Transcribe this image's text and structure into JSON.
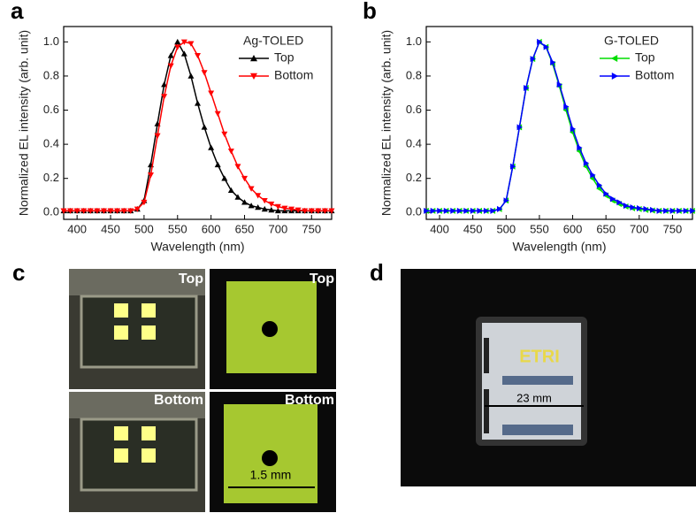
{
  "chart_data": [
    {
      "type": "line",
      "legend_title": "Ag-TOLED",
      "x_label": "Wavelength (nm)",
      "y_label": "Normalized EL intensity (arb. unit)",
      "x": [
        380,
        390,
        400,
        410,
        420,
        430,
        440,
        450,
        460,
        470,
        480,
        490,
        500,
        510,
        520,
        530,
        540,
        550,
        560,
        570,
        580,
        590,
        600,
        610,
        620,
        630,
        640,
        650,
        660,
        670,
        680,
        690,
        700,
        710,
        720,
        730,
        740,
        750,
        760,
        770,
        780
      ],
      "series": [
        {
          "name": "Top",
          "color": "#000000",
          "marker": "up",
          "values": [
            0.01,
            0.01,
            0.01,
            0.01,
            0.01,
            0.01,
            0.01,
            0.01,
            0.01,
            0.01,
            0.01,
            0.02,
            0.07,
            0.28,
            0.52,
            0.75,
            0.92,
            1.0,
            0.93,
            0.8,
            0.64,
            0.5,
            0.38,
            0.28,
            0.2,
            0.13,
            0.09,
            0.06,
            0.04,
            0.03,
            0.02,
            0.015,
            0.01,
            0.01,
            0.01,
            0.01,
            0.01,
            0.01,
            0.01,
            0.01,
            0.01
          ]
        },
        {
          "name": "Bottom",
          "color": "#ff0000",
          "marker": "down",
          "values": [
            0.01,
            0.01,
            0.01,
            0.01,
            0.01,
            0.01,
            0.01,
            0.01,
            0.01,
            0.01,
            0.01,
            0.02,
            0.06,
            0.22,
            0.45,
            0.68,
            0.86,
            0.97,
            1.0,
            0.99,
            0.92,
            0.82,
            0.7,
            0.58,
            0.46,
            0.36,
            0.27,
            0.2,
            0.14,
            0.1,
            0.07,
            0.05,
            0.035,
            0.025,
            0.02,
            0.015,
            0.01,
            0.01,
            0.01,
            0.01,
            0.01
          ]
        }
      ],
      "xlim": [
        380,
        780
      ],
      "xticks": [
        400,
        450,
        500,
        550,
        600,
        650,
        700,
        750
      ],
      "ylim": [
        -0.04,
        1.09
      ],
      "yticks": [
        {
          "value": 0,
          "label": "0.0"
        },
        0.2,
        0.4,
        0.6,
        0.8,
        {
          "value": 1,
          "label": "1.0"
        }
      ]
    },
    {
      "type": "line",
      "legend_title": "G-TOLED",
      "x_label": "Wavelength (nm)",
      "y_label": "Normalized EL intensity (arb. unit)",
      "x": [
        380,
        390,
        400,
        410,
        420,
        430,
        440,
        450,
        460,
        470,
        480,
        490,
        500,
        510,
        520,
        530,
        540,
        550,
        560,
        570,
        580,
        590,
        600,
        610,
        620,
        630,
        640,
        650,
        660,
        670,
        680,
        690,
        700,
        710,
        720,
        730,
        740,
        750,
        760,
        770,
        780
      ],
      "series": [
        {
          "name": "Top",
          "color": "#00dd00",
          "marker": "left",
          "values": [
            0.01,
            0.01,
            0.01,
            0.01,
            0.01,
            0.01,
            0.01,
            0.01,
            0.01,
            0.01,
            0.01,
            0.02,
            0.07,
            0.27,
            0.5,
            0.73,
            0.9,
            1.0,
            0.97,
            0.87,
            0.74,
            0.6,
            0.47,
            0.36,
            0.27,
            0.2,
            0.14,
            0.1,
            0.07,
            0.05,
            0.035,
            0.025,
            0.02,
            0.015,
            0.012,
            0.01,
            0.01,
            0.01,
            0.01,
            0.01,
            0.01
          ]
        },
        {
          "name": "Bottom",
          "color": "#0000ff",
          "marker": "right",
          "values": [
            0.01,
            0.01,
            0.01,
            0.01,
            0.01,
            0.01,
            0.01,
            0.01,
            0.01,
            0.01,
            0.01,
            0.02,
            0.07,
            0.27,
            0.5,
            0.73,
            0.9,
            1.0,
            0.97,
            0.88,
            0.75,
            0.62,
            0.49,
            0.38,
            0.29,
            0.22,
            0.16,
            0.11,
            0.08,
            0.06,
            0.04,
            0.03,
            0.025,
            0.02,
            0.015,
            0.01,
            0.01,
            0.01,
            0.01,
            0.01,
            0.01
          ]
        }
      ],
      "xlim": [
        380,
        780
      ],
      "xticks": [
        400,
        450,
        500,
        550,
        600,
        650,
        700,
        750
      ],
      "ylim": [
        -0.04,
        1.09
      ],
      "yticks": [
        {
          "value": 0,
          "label": "0.0"
        },
        0.2,
        0.4,
        0.6,
        0.8,
        {
          "value": 1,
          "label": "1.0"
        }
      ]
    }
  ],
  "panel_labels": [
    "a",
    "b",
    "c",
    "d"
  ],
  "photos": {
    "c": {
      "labels": [
        "Top",
        "Top",
        "Bottom",
        "Bottom"
      ],
      "scale": "1.5 mm"
    },
    "d": {
      "device_text": "ETRI",
      "scale": "23 mm"
    }
  }
}
